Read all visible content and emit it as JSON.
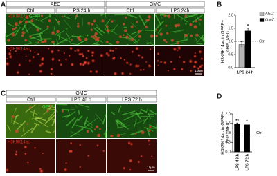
{
  "panels": [
    {
      "label": "A",
      "stains": [
        "GFAP",
        "H3K9K14ac"
      ],
      "scale_bar": "10µm",
      "groups": [
        {
          "name": "AEC",
          "conditions": [
            "Ctrl",
            "LPS  24 h"
          ]
        },
        {
          "name": "GMC",
          "conditions": [
            "Ctrl",
            "LPS  24h"
          ]
        }
      ]
    },
    {
      "label": "C",
      "stains": [
        "GFAP",
        "H3K9K14ac"
      ],
      "scale_bar": "10µm",
      "groups": [
        {
          "name": "GMC",
          "conditions": [
            "Ctrl",
            "LPS 48 h",
            "LPS 72 h"
          ]
        }
      ]
    }
  ],
  "chart_data": [
    {
      "type": "bar",
      "panel_label": "B",
      "y_label": [
        "H3K9K14ac in GFAP+",
        "cells (MFI)"
      ],
      "categories": [
        "LPS 24 h"
      ],
      "series": [
        {
          "name": "AEC",
          "color": "#b5b5b5",
          "values": [
            0.88
          ],
          "errors": [
            0.1
          ]
        },
        {
          "name": "GMC",
          "color": "#000000",
          "values": [
            1.4
          ],
          "errors": [
            0.1
          ]
        }
      ],
      "annotations": [
        {
          "series": 1,
          "index": 0,
          "text": "*"
        }
      ],
      "reference": {
        "value": 1,
        "label": "Ctrl"
      },
      "ylim": [
        0,
        2
      ],
      "yticks": [
        {
          "value": 0,
          "label": "0.0"
        },
        {
          "value": 0.5,
          "label": "0.5"
        },
        {
          "value": 1,
          "label": "1.0"
        },
        {
          "value": 1.5,
          "label": "1.5"
        },
        {
          "value": 2,
          "label": "2.0"
        }
      ],
      "legend": "top-right",
      "rotate_categories": false
    },
    {
      "type": "bar",
      "panel_label": "D",
      "y_label": [
        "H3K9K14ac in GFAP+",
        "cells (MFI)"
      ],
      "categories": [
        "LPS 48 h",
        "LPS 72 h"
      ],
      "series": [
        {
          "color": "#000000",
          "values": [
            1.47,
            1.43
          ],
          "errors": [
            0.05,
            0.05
          ]
        }
      ],
      "annotations": [
        {
          "series": 0,
          "index": 0,
          "text": "**"
        },
        {
          "series": 0,
          "index": 1,
          "text": "*"
        }
      ],
      "reference": {
        "value": 1,
        "label": "Ctrl"
      },
      "ylim": [
        0,
        2
      ],
      "yticks": [
        {
          "value": 0,
          "label": "0.0"
        },
        {
          "value": 0.5,
          "label": "0.5"
        },
        {
          "value": 1,
          "label": "1.0"
        },
        {
          "value": 1.5,
          "label": "1.5"
        },
        {
          "value": 2,
          "label": "2.0"
        }
      ],
      "rotate_categories": true
    }
  ]
}
